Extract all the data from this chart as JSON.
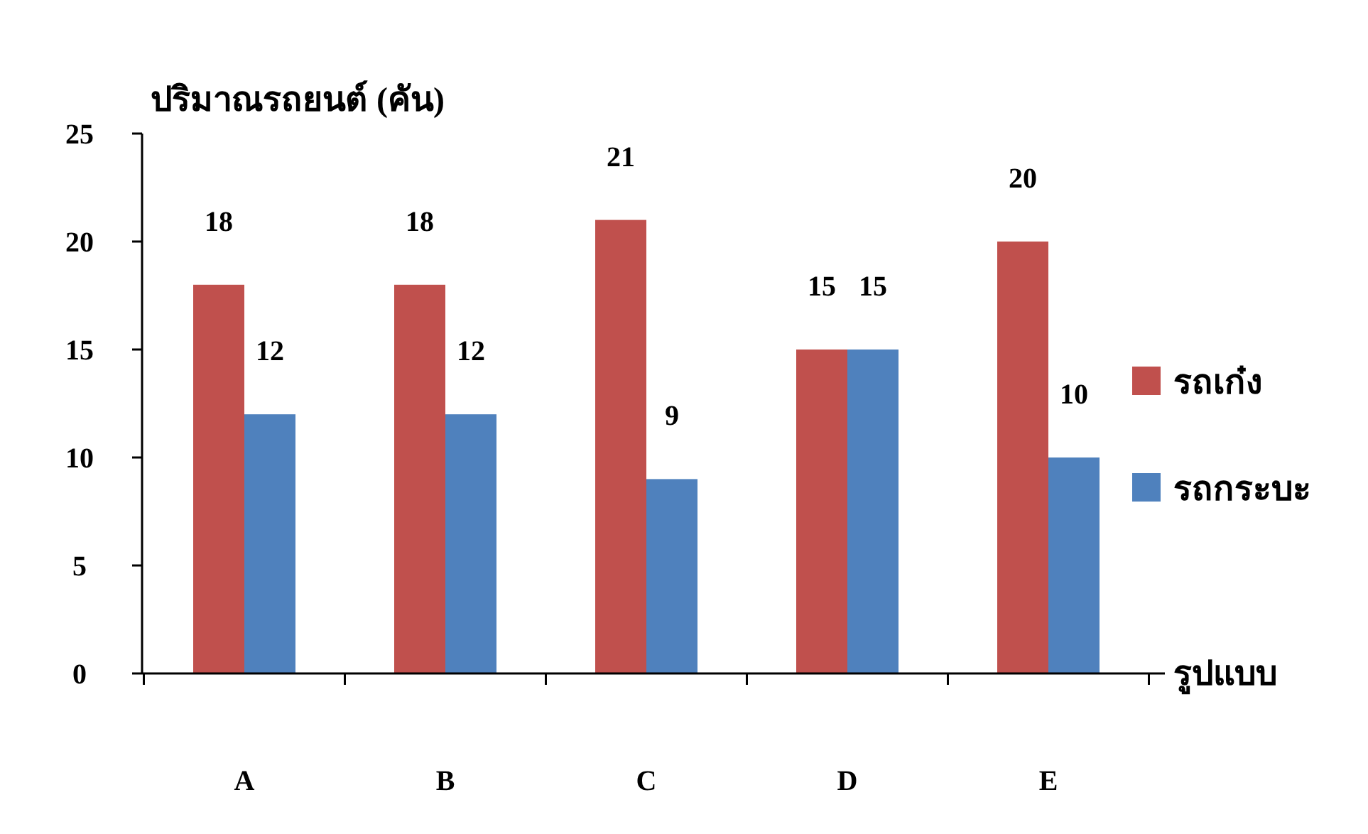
{
  "chart_data": {
    "type": "bar",
    "ylabel": "ปริมาณรถยนต์ (คัน)",
    "xlabel": "รูปแบบ",
    "categories": [
      "A",
      "B",
      "C",
      "D",
      "E"
    ],
    "series": [
      {
        "name": "รถเก๋ง",
        "color": "#c0504d",
        "values": [
          18,
          18,
          21,
          15,
          20
        ]
      },
      {
        "name": "รถกระบะ",
        "color": "#4f81bd",
        "values": [
          12,
          12,
          9,
          15,
          10
        ]
      }
    ],
    "ylim": [
      0,
      25
    ],
    "yticks": [
      0,
      5,
      10,
      15,
      20,
      25
    ],
    "grid": false,
    "legend": "right",
    "data_labels": true
  }
}
